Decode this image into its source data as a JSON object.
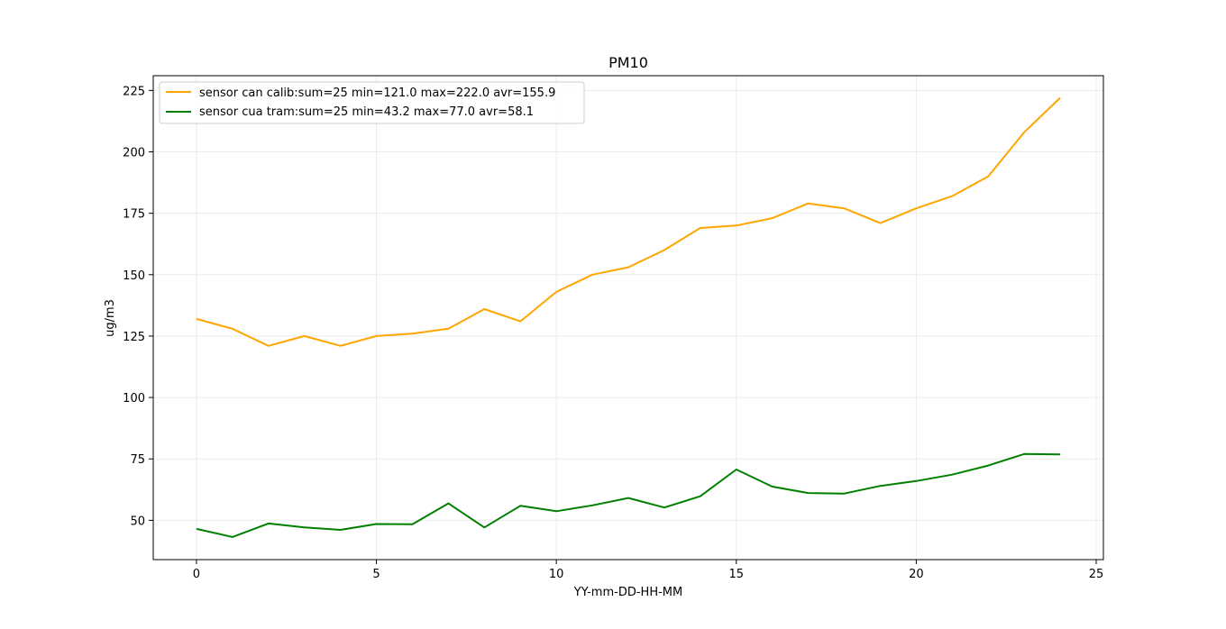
{
  "chart_data": {
    "type": "line",
    "title": "PM10",
    "xlabel": "YY-mm-DD-HH-MM",
    "ylabel": "ug/m3",
    "xlim": [
      -1.2,
      25.2
    ],
    "ylim": [
      34,
      231
    ],
    "xticks": [
      0,
      5,
      10,
      15,
      20,
      25
    ],
    "yticks": [
      50,
      75,
      100,
      125,
      150,
      175,
      200,
      225
    ],
    "grid": true,
    "legend_position": "top-left",
    "x": [
      0,
      1,
      2,
      3,
      4,
      5,
      6,
      7,
      8,
      9,
      10,
      11,
      12,
      13,
      14,
      15,
      16,
      17,
      18,
      19,
      20,
      21,
      22,
      23,
      24
    ],
    "series": [
      {
        "name": "sensor can calib:sum=25 min=121.0 max=222.0 avr=155.9",
        "color": "#ffa500",
        "values": [
          132,
          128,
          121,
          125,
          121,
          125,
          126,
          128,
          136,
          131,
          143,
          150,
          153,
          160,
          169,
          170,
          173,
          179,
          177,
          171,
          177,
          182,
          190,
          208,
          222
        ]
      },
      {
        "name": "sensor cua tram:sum=25 min=43.2 max=77.0 avr=58.1",
        "color": "#008000",
        "values": [
          46.5,
          43.2,
          48.7,
          47.1,
          46.1,
          48.5,
          48.4,
          56.9,
          47.1,
          55.9,
          53.7,
          56.1,
          59.1,
          55.2,
          59.8,
          70.7,
          63.7,
          61.1,
          60.9,
          64.0,
          66.0,
          68.6,
          72.3,
          77.0,
          76.8
        ]
      }
    ]
  }
}
